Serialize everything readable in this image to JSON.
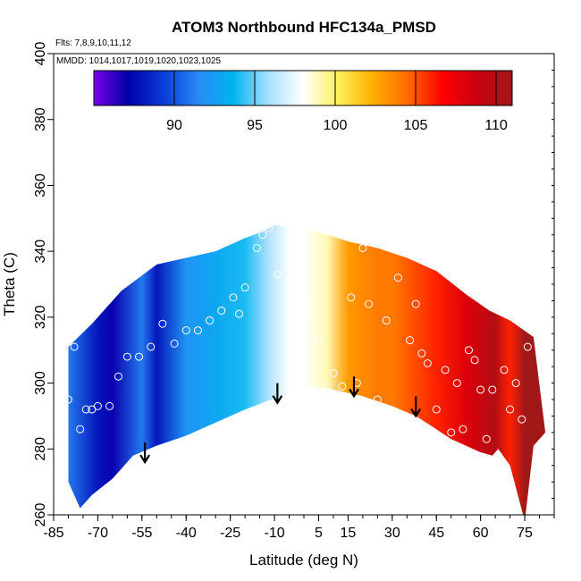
{
  "chart_data": {
    "type": "heatmap",
    "title": "ATOM3 Northbound HFC134a_PMSD",
    "annotations": {
      "flights": "Flts: 7,8,9,10,11,12",
      "dates": "MMDD: 1014,1017,1019,1020,1023,1025"
    },
    "xlabel": "Latitude (deg N)",
    "ylabel": "Theta (C)",
    "xlim": [
      -85,
      85
    ],
    "ylim": [
      260,
      400
    ],
    "xticks": [
      -85,
      -70,
      -55,
      -40,
      -25,
      -10,
      5,
      15,
      30,
      45,
      60,
      75
    ],
    "yticks": [
      260,
      280,
      300,
      320,
      340,
      360,
      380,
      400
    ],
    "colorbar": {
      "range": [
        85,
        111
      ],
      "ticks": [
        90,
        95,
        100,
        105,
        110
      ],
      "colors": [
        "#7a00e6",
        "#0000a8",
        "#0a3cd6",
        "#2a8af5",
        "#00b4f0",
        "#a8e0ff",
        "#ffffff",
        "#fff05a",
        "#ffb000",
        "#ff6a00",
        "#ff0000",
        "#c80010",
        "#a01818"
      ]
    },
    "field_samples": [
      {
        "lat": -80,
        "theta": 290,
        "value": 91
      },
      {
        "lat": -70,
        "theta": 270,
        "value": 88
      },
      {
        "lat": -65,
        "theta": 315,
        "value": 87
      },
      {
        "lat": -55,
        "theta": 300,
        "value": 91
      },
      {
        "lat": -50,
        "theta": 330,
        "value": 88
      },
      {
        "lat": -40,
        "theta": 315,
        "value": 92
      },
      {
        "lat": -30,
        "theta": 300,
        "value": 93
      },
      {
        "lat": -20,
        "theta": 335,
        "value": 94
      },
      {
        "lat": -12,
        "theta": 320,
        "value": 96
      },
      {
        "lat": -5,
        "theta": 305,
        "value": 98
      },
      {
        "lat": 0,
        "theta": 330,
        "value": 98
      },
      {
        "lat": 8,
        "theta": 330,
        "value": 99
      },
      {
        "lat": 15,
        "theta": 320,
        "value": 103
      },
      {
        "lat": 25,
        "theta": 310,
        "value": 104
      },
      {
        "lat": 30,
        "theta": 330,
        "value": 104
      },
      {
        "lat": 45,
        "theta": 300,
        "value": 106
      },
      {
        "lat": 55,
        "theta": 295,
        "value": 108
      },
      {
        "lat": 65,
        "theta": 280,
        "value": 110
      },
      {
        "lat": 70,
        "theta": 310,
        "value": 106
      },
      {
        "lat": 75,
        "theta": 290,
        "value": 111
      }
    ],
    "tropopause_arrows": [
      {
        "lat": -54,
        "theta": 276
      },
      {
        "lat": -9,
        "theta": 294
      },
      {
        "lat": 17,
        "theta": 296
      },
      {
        "lat": 38,
        "theta": 290
      }
    ],
    "observations": [
      {
        "lat": -80,
        "theta": 295
      },
      {
        "lat": -78,
        "theta": 311
      },
      {
        "lat": -76,
        "theta": 286
      },
      {
        "lat": -74,
        "theta": 292
      },
      {
        "lat": -72,
        "theta": 292
      },
      {
        "lat": -70,
        "theta": 293
      },
      {
        "lat": -66,
        "theta": 293
      },
      {
        "lat": -63,
        "theta": 302
      },
      {
        "lat": -60,
        "theta": 308
      },
      {
        "lat": -56,
        "theta": 308
      },
      {
        "lat": -52,
        "theta": 311
      },
      {
        "lat": -48,
        "theta": 318
      },
      {
        "lat": -44,
        "theta": 312
      },
      {
        "lat": -40,
        "theta": 316
      },
      {
        "lat": -36,
        "theta": 316
      },
      {
        "lat": -32,
        "theta": 319
      },
      {
        "lat": -28,
        "theta": 322
      },
      {
        "lat": -24,
        "theta": 326
      },
      {
        "lat": -22,
        "theta": 321
      },
      {
        "lat": -20,
        "theta": 329
      },
      {
        "lat": -16,
        "theta": 341
      },
      {
        "lat": -14,
        "theta": 345
      },
      {
        "lat": -12,
        "theta": 347
      },
      {
        "lat": -9,
        "theta": 333
      },
      {
        "lat": -5,
        "theta": 331
      },
      {
        "lat": -2,
        "theta": 322
      },
      {
        "lat": 1,
        "theta": 323
      },
      {
        "lat": 5,
        "theta": 313
      },
      {
        "lat": 8,
        "theta": 299
      },
      {
        "lat": 10,
        "theta": 303
      },
      {
        "lat": 13,
        "theta": 299
      },
      {
        "lat": 16,
        "theta": 326
      },
      {
        "lat": 18,
        "theta": 300
      },
      {
        "lat": 20,
        "theta": 341
      },
      {
        "lat": 22,
        "theta": 324
      },
      {
        "lat": 25,
        "theta": 295
      },
      {
        "lat": 28,
        "theta": 319
      },
      {
        "lat": 32,
        "theta": 332
      },
      {
        "lat": 36,
        "theta": 313
      },
      {
        "lat": 38,
        "theta": 324
      },
      {
        "lat": 40,
        "theta": 309
      },
      {
        "lat": 42,
        "theta": 306
      },
      {
        "lat": 45,
        "theta": 292
      },
      {
        "lat": 48,
        "theta": 304
      },
      {
        "lat": 50,
        "theta": 285
      },
      {
        "lat": 52,
        "theta": 300
      },
      {
        "lat": 54,
        "theta": 286
      },
      {
        "lat": 56,
        "theta": 310
      },
      {
        "lat": 58,
        "theta": 307
      },
      {
        "lat": 60,
        "theta": 298
      },
      {
        "lat": 62,
        "theta": 283
      },
      {
        "lat": 64,
        "theta": 298
      },
      {
        "lat": 66,
        "theta": 278
      },
      {
        "lat": 68,
        "theta": 304
      },
      {
        "lat": 70,
        "theta": 292
      },
      {
        "lat": 72,
        "theta": 300
      },
      {
        "lat": 74,
        "theta": 289
      },
      {
        "lat": 76,
        "theta": 311
      }
    ]
  }
}
